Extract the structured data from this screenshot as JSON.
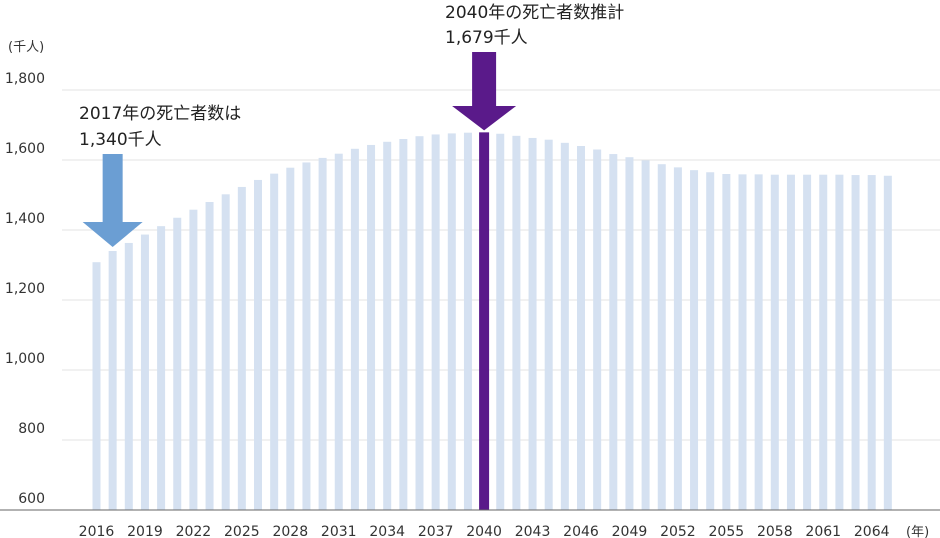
{
  "chart_data": {
    "type": "bar",
    "y_unit_label": "(千人)",
    "x_unit_label": "(年)",
    "ylim": [
      600,
      1800
    ],
    "y_ticks": [
      "1,800",
      "1,600",
      "1,400",
      "1,200",
      "1,000",
      "800",
      "600"
    ],
    "y_tick_values": [
      1800,
      1600,
      1400,
      1200,
      1000,
      800,
      600
    ],
    "x_tick_labels": [
      "2016",
      "2019",
      "2022",
      "2025",
      "2028",
      "2031",
      "2034",
      "2037",
      "2040",
      "2043",
      "2046",
      "2049",
      "2052",
      "2055",
      "2058",
      "2061",
      "2064"
    ],
    "categories": [
      2016,
      2017,
      2018,
      2019,
      2020,
      2021,
      2022,
      2023,
      2024,
      2025,
      2026,
      2027,
      2028,
      2029,
      2030,
      2031,
      2032,
      2033,
      2034,
      2035,
      2036,
      2037,
      2038,
      2039,
      2040,
      2041,
      2042,
      2043,
      2044,
      2045,
      2046,
      2047,
      2048,
      2049,
      2050,
      2051,
      2052,
      2053,
      2054,
      2055,
      2056,
      2057,
      2058,
      2059,
      2060,
      2061,
      2062,
      2063,
      2064,
      2065
    ],
    "values": [
      1308,
      1340,
      1363,
      1387,
      1411,
      1435,
      1458,
      1480,
      1502,
      1523,
      1543,
      1561,
      1578,
      1593,
      1606,
      1618,
      1632,
      1643,
      1652,
      1660,
      1668,
      1673,
      1676,
      1678,
      1679,
      1675,
      1669,
      1663,
      1658,
      1649,
      1640,
      1630,
      1617,
      1608,
      1599,
      1588,
      1579,
      1571,
      1565,
      1560,
      1559,
      1559,
      1558,
      1558,
      1558,
      1558,
      1558,
      1557,
      1557,
      1555
    ],
    "highlight_index": 24,
    "colors": {
      "bar": "#d5e1f1",
      "highlight": "#5a1a8a",
      "arrow": "#6b9ed3",
      "axis": "#666666"
    },
    "annotations": [
      {
        "line1": "2017年の死亡者数は",
        "line2": "1,340千人",
        "target_year": 2017
      },
      {
        "line1": "2040年の死亡者数推計",
        "line2": "1,679千人",
        "target_year": 2040
      }
    ]
  }
}
